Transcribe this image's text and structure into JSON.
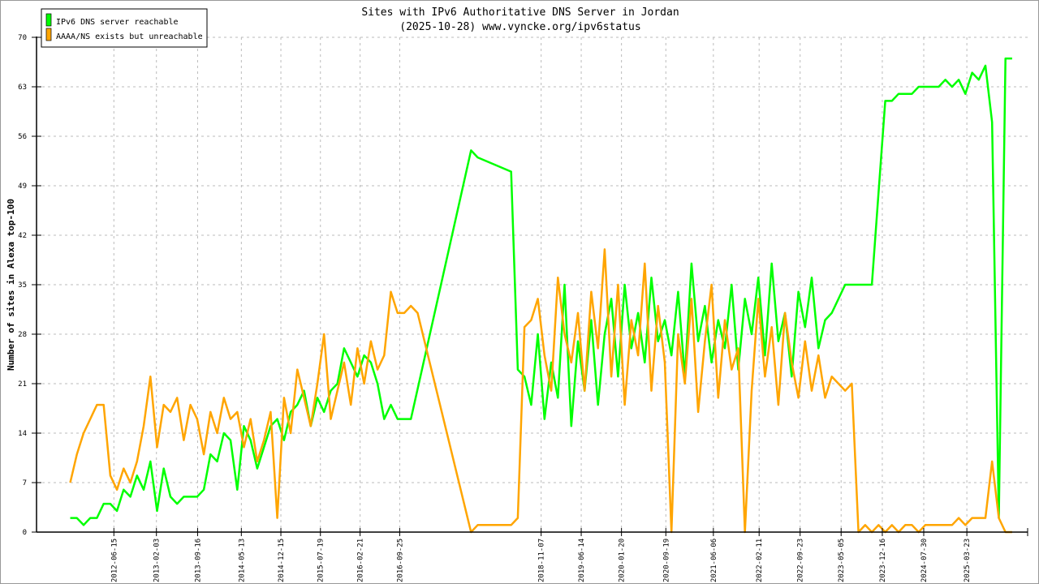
{
  "chart_data": {
    "type": "line",
    "title": "Sites with IPv6 Authoritative DNS Server in Jordan",
    "subtitle": "(2025-10-28) www.vyncke.org/ipv6status",
    "xlabel": "",
    "ylabel": "Number of sites in Alexa top-100",
    "ylim": [
      0,
      70
    ],
    "yticks": [
      0,
      7,
      14,
      21,
      28,
      35,
      42,
      49,
      56,
      63,
      70
    ],
    "xticks": [
      "2012-06-15",
      "2013-02-03",
      "2013-09-16",
      "2014-05-13",
      "2014-12-15",
      "2015-07-19",
      "2016-02-21",
      "2016-09-25",
      "2018-11-07",
      "2019-06-14",
      "2020-01-20",
      "2020-09-19",
      "2021-06-06",
      "2022-02-11",
      "2022-09-23",
      "2023-05-05",
      "2023-12-16",
      "2024-07-30",
      "2025-03-23"
    ],
    "x_unit": "decimal year",
    "x_start": 2011.8,
    "x_step": 0.1,
    "grid": true,
    "legend_position": "top-left",
    "series": [
      {
        "name": "IPv6 DNS server reachable",
        "color": "#00ff00",
        "values": [
          2,
          2,
          1,
          2,
          2,
          4,
          4,
          3,
          6,
          5,
          8,
          6,
          10,
          3,
          9,
          5,
          4,
          5,
          5,
          5,
          6,
          11,
          10,
          14,
          13,
          6,
          15,
          13,
          9,
          12,
          15,
          16,
          13,
          17,
          18,
          20,
          15,
          19,
          17,
          20,
          21,
          26,
          24,
          22,
          25,
          24,
          21,
          16,
          18,
          16,
          16,
          16,
          null,
          null,
          null,
          null,
          null,
          null,
          null,
          null,
          54,
          53,
          null,
          null,
          null,
          null,
          51,
          23,
          22,
          18,
          28,
          16,
          24,
          19,
          35,
          15,
          27,
          20,
          30,
          18,
          28,
          33,
          22,
          35,
          26,
          31,
          24,
          36,
          27,
          30,
          25,
          34,
          22,
          38,
          27,
          32,
          24,
          30,
          26,
          35,
          23,
          33,
          28,
          36,
          25,
          38,
          27,
          31,
          22,
          34,
          29,
          36,
          26,
          30,
          31,
          33,
          35,
          35,
          35,
          35,
          35,
          48,
          61,
          61,
          62,
          62,
          62,
          63,
          63,
          63,
          63,
          64,
          63,
          64,
          62,
          65,
          64,
          66,
          58,
          2,
          67,
          67
        ]
      },
      {
        "name": "AAAA/NS exists but unreachable",
        "color": "#ffa500",
        "values": [
          7,
          11,
          14,
          16,
          18,
          18,
          8,
          6,
          9,
          7,
          10,
          15,
          22,
          12,
          18,
          17,
          19,
          13,
          18,
          16,
          11,
          17,
          14,
          19,
          16,
          17,
          12,
          16,
          10,
          13,
          17,
          2,
          19,
          14,
          23,
          19,
          15,
          21,
          28,
          16,
          20,
          24,
          18,
          26,
          21,
          27,
          23,
          25,
          34,
          31,
          31,
          32,
          31,
          null,
          null,
          null,
          null,
          null,
          null,
          null,
          0,
          1,
          null,
          null,
          null,
          null,
          1,
          2,
          29,
          30,
          33,
          25,
          20,
          36,
          28,
          24,
          31,
          20,
          34,
          26,
          40,
          22,
          35,
          18,
          30,
          25,
          38,
          20,
          32,
          24,
          0,
          28,
          21,
          33,
          17,
          27,
          35,
          19,
          30,
          23,
          26,
          0,
          20,
          33,
          22,
          29,
          18,
          31,
          24,
          19,
          27,
          20,
          25,
          19,
          22,
          21,
          20,
          21,
          0,
          1,
          0,
          1,
          0,
          1,
          0,
          1,
          1,
          0,
          1,
          1,
          1,
          1,
          1,
          2,
          1,
          2,
          2,
          2,
          10,
          2,
          0,
          0
        ]
      }
    ]
  }
}
